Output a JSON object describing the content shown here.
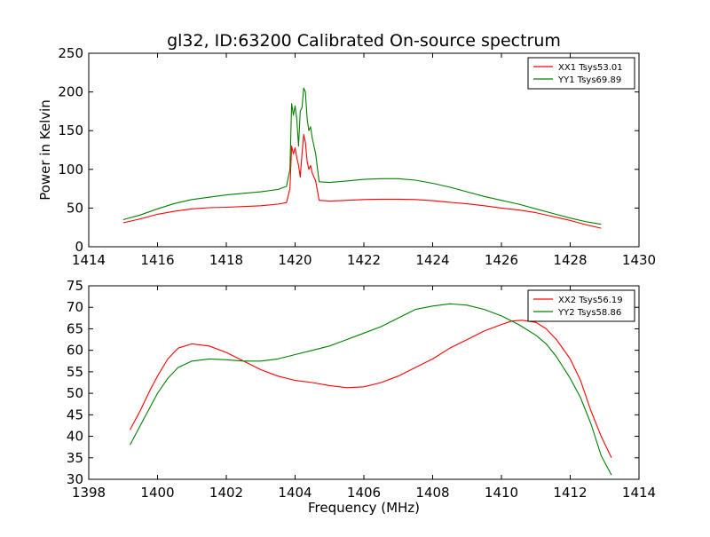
{
  "figure_title": "gl32, ID:63200 Calibrated On-source spectrum",
  "chart_data": [
    {
      "type": "line",
      "title": "gl32, ID:63200 Calibrated On-source spectrum",
      "xlabel": "",
      "ylabel": "Power in Kelvin",
      "xlim": [
        1414,
        1430
      ],
      "ylim": [
        0,
        250
      ],
      "xticks": [
        1414,
        1416,
        1418,
        1420,
        1422,
        1424,
        1426,
        1428,
        1430
      ],
      "yticks": [
        0,
        50,
        100,
        150,
        200,
        250
      ],
      "grid": false,
      "legend_position": "upper right",
      "series": [
        {
          "name": "XX1 Tsys53.01",
          "color": "#ff0000",
          "points": [
            [
              1415.0,
              31
            ],
            [
              1415.5,
              36
            ],
            [
              1416.0,
              42
            ],
            [
              1416.5,
              46
            ],
            [
              1417.0,
              49
            ],
            [
              1417.5,
              50.5
            ],
            [
              1418.0,
              51
            ],
            [
              1418.5,
              52
            ],
            [
              1419.0,
              53
            ],
            [
              1419.5,
              55
            ],
            [
              1419.75,
              57
            ],
            [
              1419.85,
              75
            ],
            [
              1419.9,
              130
            ],
            [
              1419.95,
              120
            ],
            [
              1420.0,
              128
            ],
            [
              1420.05,
              115
            ],
            [
              1420.1,
              105
            ],
            [
              1420.15,
              90
            ],
            [
              1420.2,
              120
            ],
            [
              1420.25,
              145
            ],
            [
              1420.3,
              135
            ],
            [
              1420.35,
              110
            ],
            [
              1420.4,
              100
            ],
            [
              1420.45,
              105
            ],
            [
              1420.5,
              95
            ],
            [
              1420.6,
              85
            ],
            [
              1420.7,
              60
            ],
            [
              1421.0,
              59
            ],
            [
              1421.5,
              60
            ],
            [
              1422.0,
              61
            ],
            [
              1422.5,
              61.5
            ],
            [
              1423.0,
              61.5
            ],
            [
              1423.5,
              61
            ],
            [
              1424.0,
              59.5
            ],
            [
              1424.5,
              57.5
            ],
            [
              1425.0,
              55.5
            ],
            [
              1425.5,
              53
            ],
            [
              1426.0,
              50
            ],
            [
              1426.5,
              47.5
            ],
            [
              1427.0,
              44
            ],
            [
              1427.5,
              39
            ],
            [
              1428.0,
              34
            ],
            [
              1428.5,
              28
            ],
            [
              1428.9,
              24
            ]
          ]
        },
        {
          "name": "YY1 Tsys69.89",
          "color": "#008000",
          "points": [
            [
              1415.0,
              35
            ],
            [
              1415.5,
              41
            ],
            [
              1416.0,
              49
            ],
            [
              1416.5,
              56
            ],
            [
              1417.0,
              61
            ],
            [
              1417.5,
              64
            ],
            [
              1418.0,
              67
            ],
            [
              1418.5,
              69
            ],
            [
              1419.0,
              71
            ],
            [
              1419.5,
              74
            ],
            [
              1419.75,
              78
            ],
            [
              1419.85,
              100
            ],
            [
              1419.9,
              185
            ],
            [
              1419.95,
              170
            ],
            [
              1420.0,
              182
            ],
            [
              1420.05,
              165
            ],
            [
              1420.1,
              130
            ],
            [
              1420.15,
              175
            ],
            [
              1420.2,
              180
            ],
            [
              1420.25,
              205
            ],
            [
              1420.3,
              200
            ],
            [
              1420.35,
              165
            ],
            [
              1420.4,
              150
            ],
            [
              1420.45,
              155
            ],
            [
              1420.5,
              140
            ],
            [
              1420.6,
              120
            ],
            [
              1420.7,
              84
            ],
            [
              1421.0,
              83
            ],
            [
              1421.5,
              85
            ],
            [
              1422.0,
              87
            ],
            [
              1422.5,
              88
            ],
            [
              1423.0,
              88
            ],
            [
              1423.5,
              86
            ],
            [
              1424.0,
              82
            ],
            [
              1424.5,
              77
            ],
            [
              1425.0,
              71
            ],
            [
              1425.5,
              65
            ],
            [
              1426.0,
              60
            ],
            [
              1426.5,
              55
            ],
            [
              1427.0,
              49
            ],
            [
              1427.5,
              43
            ],
            [
              1428.0,
              37
            ],
            [
              1428.5,
              32
            ],
            [
              1428.9,
              29
            ]
          ]
        }
      ]
    },
    {
      "type": "line",
      "title": "",
      "xlabel": "Frequency (MHz)",
      "ylabel": "",
      "xlim": [
        1398,
        1414
      ],
      "ylim": [
        30,
        75
      ],
      "xticks": [
        1398,
        1400,
        1402,
        1404,
        1406,
        1408,
        1410,
        1412,
        1414
      ],
      "yticks": [
        30,
        35,
        40,
        45,
        50,
        55,
        60,
        65,
        70,
        75
      ],
      "grid": false,
      "legend_position": "upper right",
      "series": [
        {
          "name": "XX2 Tsys56.19",
          "color": "#ff0000",
          "points": [
            [
              1399.2,
              41.5
            ],
            [
              1399.5,
              46
            ],
            [
              1399.8,
              51
            ],
            [
              1400.0,
              54
            ],
            [
              1400.3,
              58
            ],
            [
              1400.6,
              60.5
            ],
            [
              1401.0,
              61.5
            ],
            [
              1401.5,
              61
            ],
            [
              1402.0,
              59.5
            ],
            [
              1402.5,
              57.5
            ],
            [
              1403.0,
              55.5
            ],
            [
              1403.5,
              54
            ],
            [
              1404.0,
              53
            ],
            [
              1404.5,
              52.5
            ],
            [
              1405.0,
              51.8
            ],
            [
              1405.5,
              51.3
            ],
            [
              1406.0,
              51.5
            ],
            [
              1406.5,
              52.5
            ],
            [
              1407.0,
              54
            ],
            [
              1407.5,
              56
            ],
            [
              1408.0,
              58
            ],
            [
              1408.5,
              60.5
            ],
            [
              1409.0,
              62.5
            ],
            [
              1409.5,
              64.5
            ],
            [
              1410.0,
              66
            ],
            [
              1410.3,
              66.8
            ],
            [
              1410.6,
              67
            ],
            [
              1411.0,
              66.5
            ],
            [
              1411.3,
              65
            ],
            [
              1411.6,
              62.5
            ],
            [
              1412.0,
              58
            ],
            [
              1412.3,
              53
            ],
            [
              1412.6,
              46
            ],
            [
              1412.9,
              40
            ],
            [
              1413.2,
              35
            ]
          ]
        },
        {
          "name": "YY2 Tsys58.86",
          "color": "#008000",
          "points": [
            [
              1399.2,
              38
            ],
            [
              1399.5,
              42.5
            ],
            [
              1399.8,
              47
            ],
            [
              1400.0,
              50
            ],
            [
              1400.3,
              53.5
            ],
            [
              1400.6,
              56
            ],
            [
              1401.0,
              57.5
            ],
            [
              1401.5,
              58
            ],
            [
              1402.0,
              57.8
            ],
            [
              1402.5,
              57.5
            ],
            [
              1403.0,
              57.5
            ],
            [
              1403.5,
              58
            ],
            [
              1404.0,
              59
            ],
            [
              1404.5,
              60
            ],
            [
              1405.0,
              61
            ],
            [
              1405.5,
              62.5
            ],
            [
              1406.0,
              64
            ],
            [
              1406.5,
              65.5
            ],
            [
              1407.0,
              67.5
            ],
            [
              1407.5,
              69.5
            ],
            [
              1408.0,
              70.3
            ],
            [
              1408.5,
              70.8
            ],
            [
              1409.0,
              70.5
            ],
            [
              1409.5,
              69.5
            ],
            [
              1410.0,
              68
            ],
            [
              1410.5,
              66
            ],
            [
              1411.0,
              63.5
            ],
            [
              1411.3,
              61.5
            ],
            [
              1411.6,
              58.5
            ],
            [
              1412.0,
              53.5
            ],
            [
              1412.3,
              49
            ],
            [
              1412.6,
              43
            ],
            [
              1412.9,
              35.5
            ],
            [
              1413.2,
              31
            ]
          ]
        }
      ]
    }
  ]
}
